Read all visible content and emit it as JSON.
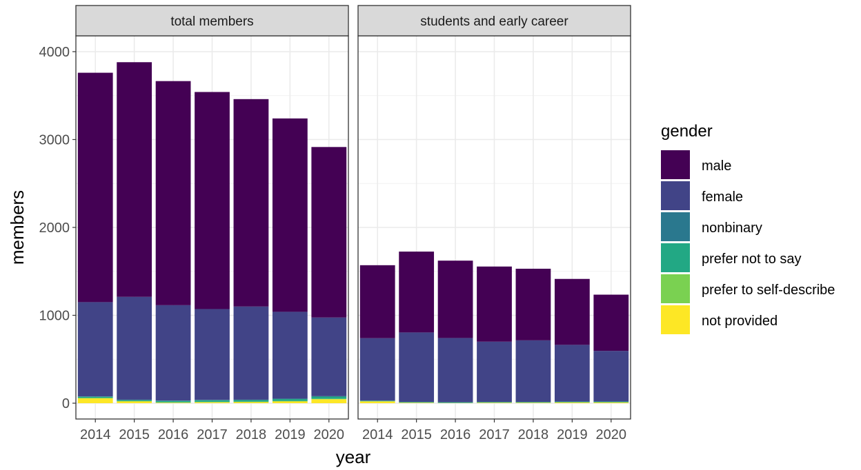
{
  "chart_data": {
    "type": "bar",
    "stacked": true,
    "facets": [
      "total members",
      "students and early career"
    ],
    "categories": [
      "2014",
      "2015",
      "2016",
      "2017",
      "2018",
      "2019",
      "2020"
    ],
    "xlabel": "year",
    "ylabel": "members",
    "ylim": [
      -180,
      4180
    ],
    "yticks": [
      0,
      1000,
      2000,
      3000,
      4000
    ],
    "grid": true,
    "legend": {
      "title": "gender",
      "position": "right"
    },
    "stack_order_bottom_to_top": [
      "not provided",
      "prefer to self-describe",
      "prefer not to say",
      "nonbinary",
      "female",
      "male"
    ],
    "series": [
      {
        "name": "male",
        "color": "#440154",
        "values": [
          [
            2610,
            2670,
            2550,
            2470,
            2360,
            2200,
            1940
          ],
          [
            830,
            920,
            880,
            855,
            815,
            750,
            640
          ]
        ]
      },
      {
        "name": "female",
        "color": "#414487",
        "values": [
          [
            1072,
            1170,
            1085,
            1033,
            1060,
            988,
            895
          ],
          [
            710,
            790,
            730,
            685,
            700,
            645,
            575
          ]
        ]
      },
      {
        "name": "nonbinary",
        "color": "#2A788E",
        "values": [
          [
            5,
            5,
            5,
            5,
            5,
            5,
            5
          ],
          [
            3,
            3,
            3,
            3,
            3,
            3,
            3
          ]
        ]
      },
      {
        "name": "prefer not to say",
        "color": "#22A884",
        "values": [
          [
            13,
            10,
            15,
            18,
            18,
            22,
            25
          ],
          [
            5,
            5,
            5,
            5,
            5,
            6,
            7
          ]
        ]
      },
      {
        "name": "prefer to self-describe",
        "color": "#7AD151",
        "values": [
          [
            5,
            5,
            5,
            5,
            5,
            5,
            5
          ],
          [
            2,
            2,
            2,
            2,
            2,
            2,
            2
          ]
        ]
      },
      {
        "name": "not provided",
        "color": "#FDE725",
        "values": [
          [
            55,
            20,
            5,
            10,
            12,
            20,
            45
          ],
          [
            20,
            5,
            2,
            5,
            5,
            8,
            8
          ]
        ]
      }
    ]
  }
}
